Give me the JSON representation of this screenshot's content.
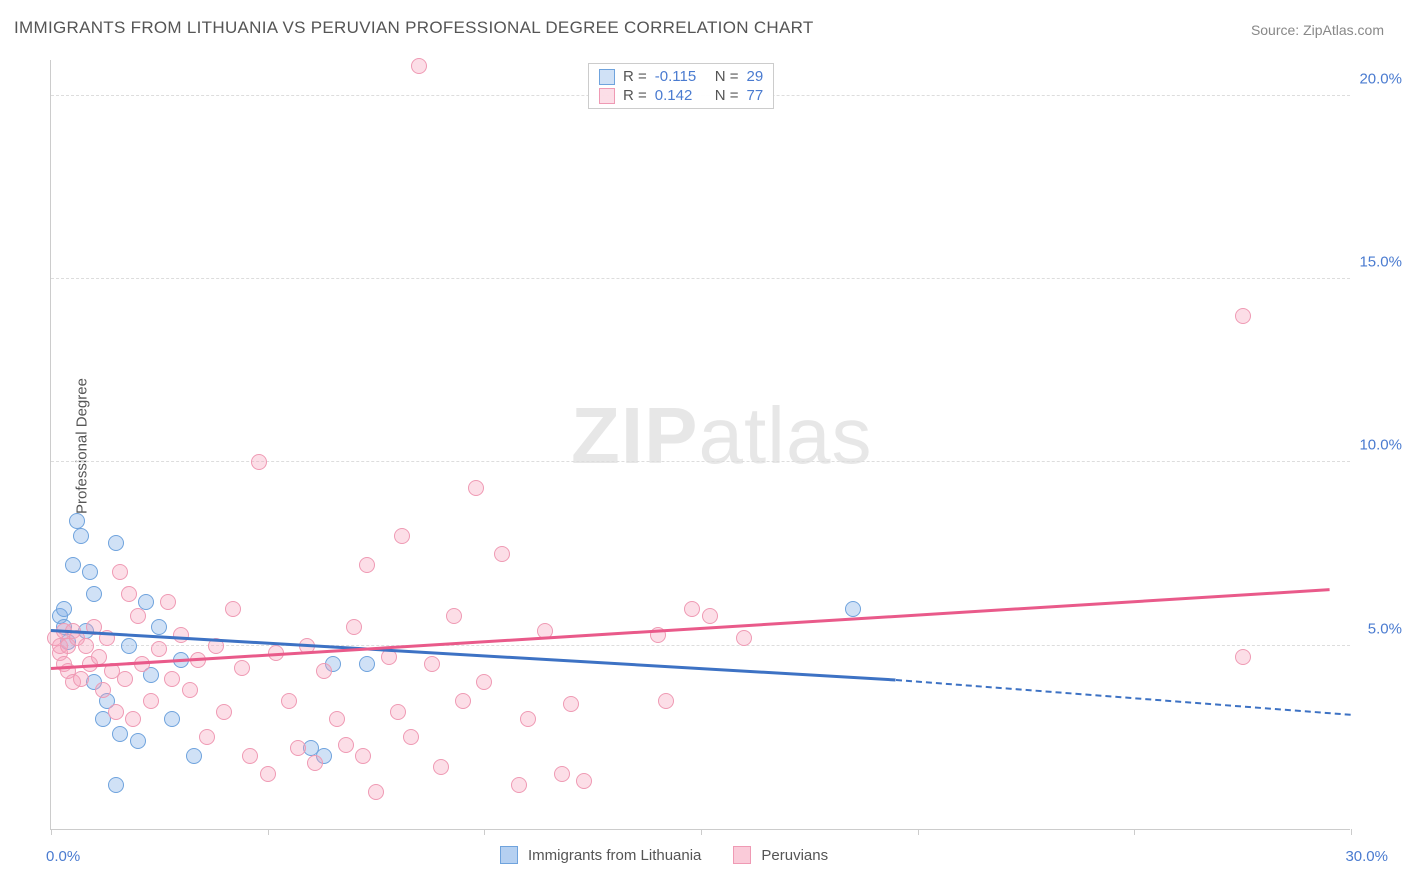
{
  "title": "IMMIGRANTS FROM LITHUANIA VS PERUVIAN PROFESSIONAL DEGREE CORRELATION CHART",
  "source": "Source: ZipAtlas.com",
  "ylabel": "Professional Degree",
  "watermark_a": "ZIP",
  "watermark_b": "atlas",
  "chart": {
    "type": "scatter",
    "xlim": [
      0,
      30
    ],
    "ylim": [
      0,
      21
    ],
    "y_ticks": [
      5,
      10,
      15,
      20
    ],
    "y_tick_labels": [
      "5.0%",
      "10.0%",
      "15.0%",
      "20.0%"
    ],
    "x_tick_positions": [
      0,
      5,
      10,
      15,
      20,
      25,
      30
    ],
    "x_min_label": "0.0%",
    "x_max_label": "30.0%",
    "grid_color": "#dddddd",
    "axis_color": "#cccccc",
    "tick_label_color": "#4a7bd0",
    "background": "#ffffff",
    "point_radius": 8,
    "point_border_width": 1.5,
    "series": [
      {
        "name": "Immigrants from Lithuania",
        "label": "Immigrants from Lithuania",
        "fill": "rgba(120,170,230,0.35)",
        "stroke": "#6fa3dd",
        "R": "-0.115",
        "N": "29",
        "trend": {
          "x1": 0,
          "y1": 5.4,
          "x2": 19.5,
          "y2": 4.05,
          "dash_x2": 30,
          "dash_y2": 3.1,
          "color": "#3d72c4"
        },
        "points": [
          [
            0.2,
            5.8
          ],
          [
            0.3,
            5.5
          ],
          [
            0.3,
            6.0
          ],
          [
            0.4,
            5.1
          ],
          [
            0.5,
            7.2
          ],
          [
            0.6,
            8.4
          ],
          [
            0.7,
            8.0
          ],
          [
            0.8,
            5.4
          ],
          [
            0.9,
            7.0
          ],
          [
            1.0,
            4.0
          ],
          [
            1.0,
            6.4
          ],
          [
            1.2,
            3.0
          ],
          [
            1.3,
            3.5
          ],
          [
            1.5,
            7.8
          ],
          [
            1.5,
            1.2
          ],
          [
            1.6,
            2.6
          ],
          [
            1.8,
            5.0
          ],
          [
            2.0,
            2.4
          ],
          [
            2.2,
            6.2
          ],
          [
            2.3,
            4.2
          ],
          [
            2.5,
            5.5
          ],
          [
            2.8,
            3.0
          ],
          [
            3.0,
            4.6
          ],
          [
            3.3,
            2.0
          ],
          [
            6.0,
            2.2
          ],
          [
            6.3,
            2.0
          ],
          [
            6.5,
            4.5
          ],
          [
            7.3,
            4.5
          ],
          [
            18.5,
            6.0
          ]
        ]
      },
      {
        "name": "Peruvians",
        "label": "Peruvians",
        "fill": "rgba(245,160,185,0.35)",
        "stroke": "#ef9ab4",
        "R": "0.142",
        "N": "77",
        "trend": {
          "x1": 0,
          "y1": 4.35,
          "x2": 29.5,
          "y2": 6.5,
          "color": "#e95a8a"
        },
        "points": [
          [
            0.1,
            5.2
          ],
          [
            0.2,
            4.8
          ],
          [
            0.2,
            5.0
          ],
          [
            0.3,
            5.4
          ],
          [
            0.3,
            4.5
          ],
          [
            0.4,
            5.0
          ],
          [
            0.4,
            4.3
          ],
          [
            0.5,
            5.4
          ],
          [
            0.5,
            4.0
          ],
          [
            0.6,
            5.2
          ],
          [
            0.7,
            4.1
          ],
          [
            0.8,
            5.0
          ],
          [
            0.9,
            4.5
          ],
          [
            1.0,
            5.5
          ],
          [
            1.1,
            4.7
          ],
          [
            1.2,
            3.8
          ],
          [
            1.3,
            5.2
          ],
          [
            1.4,
            4.3
          ],
          [
            1.5,
            3.2
          ],
          [
            1.6,
            7.0
          ],
          [
            1.7,
            4.1
          ],
          [
            1.8,
            6.4
          ],
          [
            1.9,
            3.0
          ],
          [
            2.0,
            5.8
          ],
          [
            2.1,
            4.5
          ],
          [
            2.3,
            3.5
          ],
          [
            2.5,
            4.9
          ],
          [
            2.7,
            6.2
          ],
          [
            2.8,
            4.1
          ],
          [
            3.0,
            5.3
          ],
          [
            3.2,
            3.8
          ],
          [
            3.4,
            4.6
          ],
          [
            3.6,
            2.5
          ],
          [
            3.8,
            5.0
          ],
          [
            4.0,
            3.2
          ],
          [
            4.2,
            6.0
          ],
          [
            4.4,
            4.4
          ],
          [
            4.6,
            2.0
          ],
          [
            4.8,
            10.0
          ],
          [
            5.0,
            1.5
          ],
          [
            5.2,
            4.8
          ],
          [
            5.5,
            3.5
          ],
          [
            5.7,
            2.2
          ],
          [
            5.9,
            5.0
          ],
          [
            6.1,
            1.8
          ],
          [
            6.3,
            4.3
          ],
          [
            6.6,
            3.0
          ],
          [
            6.8,
            2.3
          ],
          [
            7.0,
            5.5
          ],
          [
            7.2,
            2.0
          ],
          [
            7.3,
            7.2
          ],
          [
            7.5,
            1.0
          ],
          [
            7.8,
            4.7
          ],
          [
            8.0,
            3.2
          ],
          [
            8.1,
            8.0
          ],
          [
            8.3,
            2.5
          ],
          [
            8.5,
            20.8
          ],
          [
            8.8,
            4.5
          ],
          [
            9.0,
            1.7
          ],
          [
            9.3,
            5.8
          ],
          [
            9.5,
            3.5
          ],
          [
            9.8,
            9.3
          ],
          [
            10.0,
            4.0
          ],
          [
            10.4,
            7.5
          ],
          [
            10.8,
            1.2
          ],
          [
            11.0,
            3.0
          ],
          [
            11.4,
            5.4
          ],
          [
            11.8,
            1.5
          ],
          [
            12.0,
            3.4
          ],
          [
            12.3,
            1.3
          ],
          [
            14.0,
            5.3
          ],
          [
            14.8,
            6.0
          ],
          [
            15.2,
            5.8
          ],
          [
            16.0,
            5.2
          ],
          [
            27.5,
            14.0
          ],
          [
            27.5,
            4.7
          ],
          [
            14.2,
            3.5
          ]
        ]
      }
    ]
  },
  "legend_top": {
    "R_label": "R =",
    "N_label": "N ="
  },
  "legend_bottom": {
    "items": [
      {
        "label": "Immigrants from Lithuania",
        "fill": "rgba(120,170,230,0.55)",
        "stroke": "#6fa3dd"
      },
      {
        "label": "Peruvians",
        "fill": "rgba(245,160,185,0.55)",
        "stroke": "#ef9ab4"
      }
    ]
  }
}
